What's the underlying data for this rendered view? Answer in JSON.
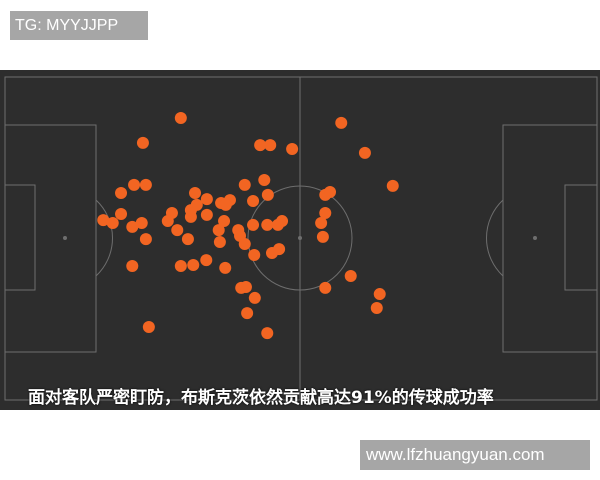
{
  "header": {
    "tag_label": "TG: MYYJJPP"
  },
  "image": {
    "caption": "面对客队严密盯防，布斯克茨依然贡献高达91%的传球成功率",
    "pitch_color": "#2d2d2d",
    "line_color": "#6e6e6e",
    "dot_color": "#f26522"
  },
  "footer": {
    "url_label": "www.lfzhuangyuan.com"
  },
  "chart_data": {
    "type": "scatter",
    "title": "",
    "xlabel": "",
    "ylabel": "",
    "xlim": [
      0,
      100
    ],
    "ylim": [
      0,
      100
    ],
    "grid": false,
    "points": [
      [
        29.7,
        12.7
      ],
      [
        23.3,
        20.4
      ],
      [
        56.8,
        14.2
      ],
      [
        43.1,
        21.1
      ],
      [
        44.8,
        21.1
      ],
      [
        48.5,
        22.3
      ],
      [
        60.8,
        23.5
      ],
      [
        65.5,
        33.7
      ],
      [
        19.6,
        35.9
      ],
      [
        21.8,
        33.4
      ],
      [
        23.8,
        33.4
      ],
      [
        40.5,
        33.4
      ],
      [
        43.8,
        31.9
      ],
      [
        44.4,
        36.5
      ],
      [
        32.1,
        35.9
      ],
      [
        34.1,
        37.8
      ],
      [
        36.5,
        39.0
      ],
      [
        38.0,
        38.1
      ],
      [
        41.9,
        38.4
      ],
      [
        54.1,
        36.5
      ],
      [
        54.9,
        35.6
      ],
      [
        16.6,
        44.3
      ],
      [
        18.2,
        45.2
      ],
      [
        19.6,
        42.4
      ],
      [
        21.5,
        46.4
      ],
      [
        23.1,
        45.2
      ],
      [
        23.8,
        50.2
      ],
      [
        28.2,
        42.1
      ],
      [
        27.5,
        44.6
      ],
      [
        29.1,
        47.4
      ],
      [
        30.9,
        50.2
      ],
      [
        31.4,
        43.3
      ],
      [
        31.4,
        41.2
      ],
      [
        32.4,
        39.6
      ],
      [
        34.1,
        42.7
      ],
      [
        37.3,
        39.6
      ],
      [
        37.0,
        44.6
      ],
      [
        36.1,
        47.4
      ],
      [
        36.3,
        51.1
      ],
      [
        39.4,
        47.4
      ],
      [
        39.7,
        49.2
      ],
      [
        40.5,
        51.7
      ],
      [
        41.9,
        45.8
      ],
      [
        44.3,
        45.8
      ],
      [
        46.8,
        44.6
      ],
      [
        46.1,
        45.8
      ],
      [
        45.1,
        54.5
      ],
      [
        46.3,
        53.3
      ],
      [
        54.1,
        42.1
      ],
      [
        53.4,
        45.2
      ],
      [
        53.7,
        49.5
      ],
      [
        42.1,
        55.1
      ],
      [
        37.2,
        59.1
      ],
      [
        29.7,
        58.5
      ],
      [
        31.8,
        58.2
      ],
      [
        34.0,
        56.7
      ],
      [
        21.5,
        58.5
      ],
      [
        39.9,
        65.3
      ],
      [
        40.7,
        65.0
      ],
      [
        42.2,
        68.4
      ],
      [
        40.9,
        73.1
      ],
      [
        44.3,
        79.3
      ],
      [
        24.3,
        77.4
      ],
      [
        54.1,
        65.3
      ],
      [
        58.4,
        61.6
      ],
      [
        63.3,
        67.2
      ],
      [
        62.8,
        71.5
      ]
    ]
  }
}
